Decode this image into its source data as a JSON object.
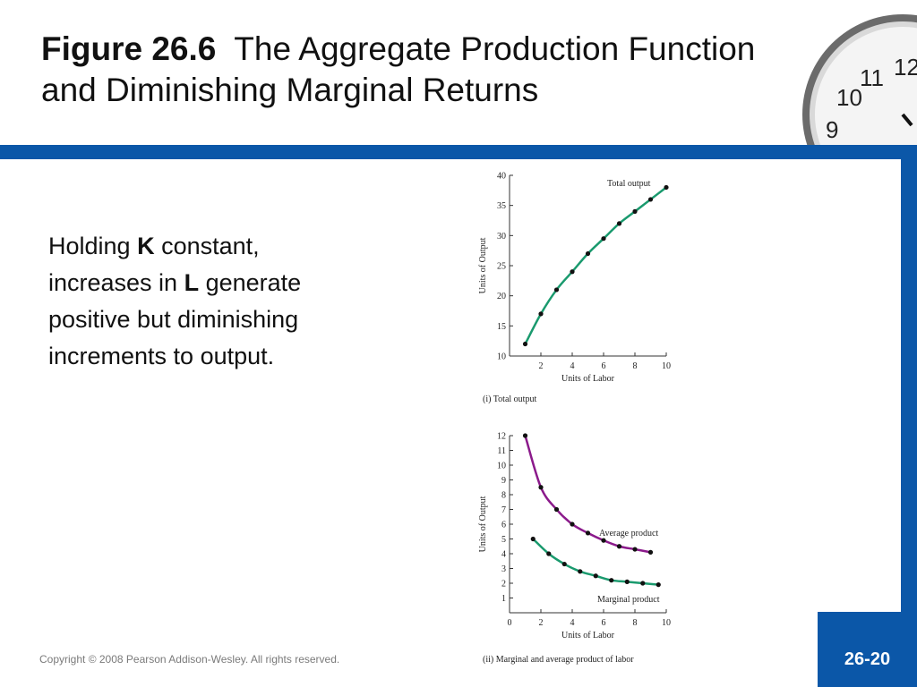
{
  "slide": {
    "title_bold": "Figure 26.6",
    "title_rest": "The Aggregate Production Function and Diminishing Marginal Returns",
    "body": {
      "part1": "Holding ",
      "k": "K",
      "part2": " constant, increases in ",
      "l": "L",
      "part3": " generate positive but diminishing increments to output."
    },
    "footer": "Copyright © 2008 Pearson Addison-Wesley. All rights reserved.",
    "page_number": "26-20",
    "accent_color": "#0b57a8",
    "clock_numbers": [
      "12",
      "11",
      "10",
      "9"
    ]
  },
  "chart_data": [
    {
      "type": "line",
      "caption": "(i) Total output",
      "xlabel": "Units of Labor",
      "ylabel": "Units of Output",
      "xlim": [
        0,
        10
      ],
      "ylim": [
        10,
        40
      ],
      "xticks": [
        2,
        4,
        6,
        8,
        10
      ],
      "yticks": [
        10,
        15,
        20,
        25,
        30,
        35,
        40
      ],
      "series": [
        {
          "name": "Total output",
          "color": "#1a9a6e",
          "x": [
            1,
            2,
            3,
            4,
            5,
            6,
            7,
            8,
            9,
            10
          ],
          "y": [
            12,
            17,
            21,
            24,
            27,
            29.5,
            32,
            34,
            36,
            38
          ]
        }
      ]
    },
    {
      "type": "line",
      "caption": "(ii) Marginal and average product of labor",
      "xlabel": "Units of Labor",
      "ylabel": "Units of Output",
      "xlim": [
        0,
        10
      ],
      "ylim": [
        0,
        12
      ],
      "xticks": [
        0,
        2,
        4,
        6,
        8,
        10
      ],
      "yticks": [
        1,
        2,
        3,
        4,
        5,
        6,
        7,
        8,
        9,
        10,
        11,
        12
      ],
      "series": [
        {
          "name": "Average product",
          "color": "#8b1a8b",
          "x": [
            1,
            2,
            3,
            4,
            5,
            6,
            7,
            8,
            9
          ],
          "y": [
            12,
            8.5,
            7,
            6,
            5.4,
            4.9,
            4.5,
            4.3,
            4.1
          ]
        },
        {
          "name": "Marginal product",
          "color": "#1a9a6e",
          "x": [
            1.5,
            2.5,
            3.5,
            4.5,
            5.5,
            6.5,
            7.5,
            8.5,
            9.5
          ],
          "y": [
            5,
            4,
            3.3,
            2.8,
            2.5,
            2.2,
            2.1,
            2.0,
            1.9
          ]
        }
      ]
    }
  ]
}
